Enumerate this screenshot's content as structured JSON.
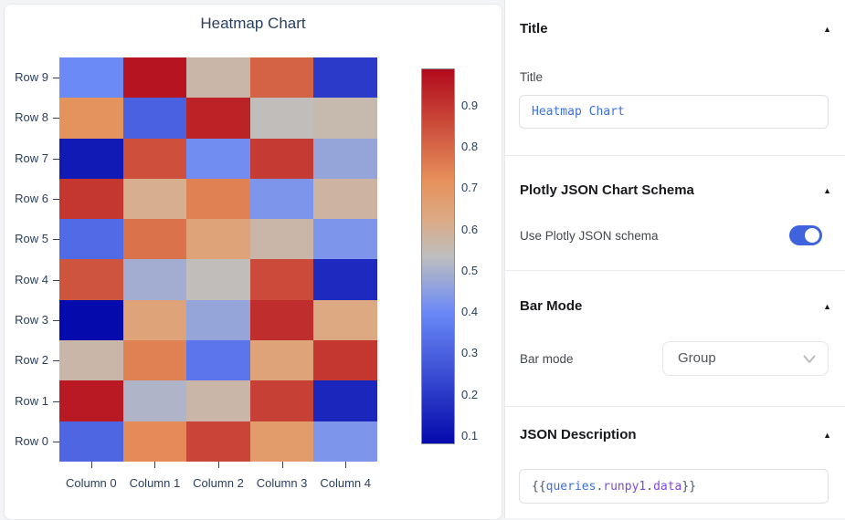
{
  "chart_data": {
    "type": "heatmap",
    "title": "Heatmap Chart",
    "rows": [
      "Row 9",
      "Row 8",
      "Row 7",
      "Row 6",
      "Row 5",
      "Row 4",
      "Row 3",
      "Row 2",
      "Row 1",
      "Row 0"
    ],
    "columns": [
      "Column 0",
      "Column 1",
      "Column 2",
      "Column 3",
      "Column 4"
    ],
    "values": [
      [
        0.4,
        0.97,
        0.57,
        0.81,
        0.2
      ],
      [
        0.71,
        0.3,
        0.94,
        0.54,
        0.56
      ],
      [
        0.12,
        0.85,
        0.41,
        0.89,
        0.47
      ],
      [
        0.9,
        0.61,
        0.75,
        0.43,
        0.58
      ],
      [
        0.32,
        0.78,
        0.65,
        0.57,
        0.43
      ],
      [
        0.84,
        0.49,
        0.54,
        0.86,
        0.16
      ],
      [
        0.08,
        0.65,
        0.47,
        0.92,
        0.63
      ],
      [
        0.57,
        0.75,
        0.35,
        0.65,
        0.9
      ],
      [
        0.96,
        0.51,
        0.57,
        0.88,
        0.15
      ],
      [
        0.31,
        0.73,
        0.87,
        0.68,
        0.43
      ]
    ],
    "zmin": 0.08,
    "zmax": 0.99,
    "colorscale": [
      [
        0.0,
        "rgb(5,10,172)"
      ],
      [
        0.35,
        "rgb(106,137,247)"
      ],
      [
        0.5,
        "rgb(190,190,190)"
      ],
      [
        0.6,
        "rgb(220,170,132)"
      ],
      [
        0.7,
        "rgb(230,145,90)"
      ],
      [
        1.0,
        "rgb(178,10,28)"
      ]
    ],
    "colorbar_ticks": [
      0.9,
      0.8,
      0.7,
      0.6,
      0.5,
      0.4,
      0.3,
      0.2,
      0.1
    ],
    "legend_position": "right",
    "grid": false
  },
  "inspector": {
    "collapse_icon": "▲",
    "title_section": {
      "header": "Title",
      "field_label": "Title",
      "field_value": "Heatmap Chart"
    },
    "schema_section": {
      "header": "Plotly JSON Chart Schema",
      "toggle_label": "Use Plotly JSON schema",
      "toggle_state": "on"
    },
    "bar_mode_section": {
      "header": "Bar Mode",
      "field_label": "Bar mode",
      "dropdown_value": "Group"
    },
    "json_section": {
      "header": "JSON Description",
      "field_tokens": [
        {
          "text": "{{",
          "color": "#4b5563"
        },
        {
          "text": "queries",
          "color": "#3a6fe0"
        },
        {
          "text": ".",
          "color": "#4b5563"
        },
        {
          "text": "runpy1",
          "color": "#7d4ae2"
        },
        {
          "text": ".",
          "color": "#4b5563"
        },
        {
          "text": "data",
          "color": "#7d4ae2"
        },
        {
          "text": "}}",
          "color": "#4b5563"
        }
      ]
    }
  },
  "colors": {
    "accent": "#3e63dd",
    "code_text": "#3a6fe0",
    "axis_text": "#2a3f5f"
  }
}
